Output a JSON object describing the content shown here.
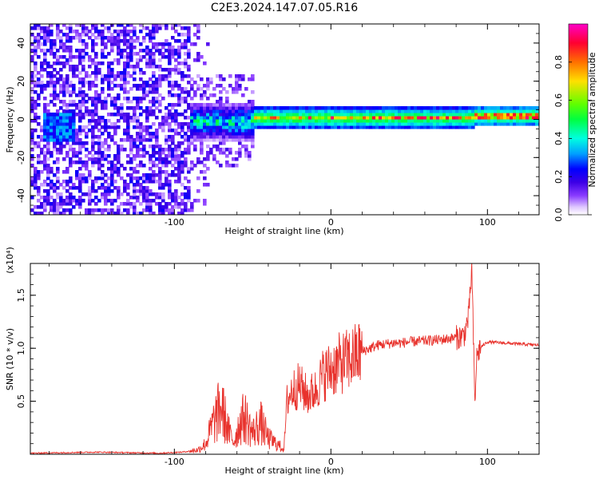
{
  "title": "C2E3.2024.147.07.05.R16",
  "chart_data": [
    {
      "type": "heatmap",
      "xlabel": "Height of straight line (km)",
      "ylabel": "Frequency (Hz)",
      "xlim": [
        -192,
        133
      ],
      "ylim": [
        -50,
        50
      ],
      "x_ticks": [
        -100,
        0,
        100
      ],
      "y_ticks": [
        -40,
        -20,
        0,
        20,
        40
      ],
      "colorbar": {
        "label": "Normalized spectral amplitude",
        "range": [
          0,
          1
        ],
        "ticks": [
          0.0,
          0.2,
          0.4,
          0.6,
          0.8
        ],
        "colormap": [
          "#ffffff",
          "#e0c8ff",
          "#8a3cff",
          "#3c00e6",
          "#0000ff",
          "#00a0ff",
          "#00ffe0",
          "#00ff40",
          "#60ff00",
          "#ffe000",
          "#ff7000",
          "#ff0030",
          "#ff00c8"
        ]
      },
      "regions": [
        {
          "x_range": [
            -192,
            -90
          ],
          "description_value": "broadband noise, amplitude 0.05-0.3 over full band"
        },
        {
          "x_range": [
            -90,
            -50
          ],
          "center_hz": -2,
          "half_width_hz": 8,
          "peak_amplitude": 0.5
        },
        {
          "x_range": [
            -50,
            133
          ],
          "center_hz": 0,
          "half_width_hz": 4,
          "peak_amplitude": 0.95
        }
      ]
    },
    {
      "type": "line",
      "xlabel": "Height of straight line (km)",
      "ylabel": "SNR (10 * v/v)",
      "y_multiplier": "(x10⁴)",
      "xlim": [
        -192,
        133
      ],
      "ylim": [
        0,
        1.8
      ],
      "x_ticks": [
        -100,
        0,
        100
      ],
      "y_ticks": [
        0.5,
        1.0,
        1.5
      ],
      "color": "#e8322c",
      "series": [
        {
          "x": [
            -192,
            -150,
            -110,
            -95,
            -85,
            -80,
            -75,
            -70,
            -65,
            -62,
            -58,
            -55,
            -50,
            -45,
            -40,
            -35,
            -30,
            -28,
            -25,
            -20,
            -15,
            -10,
            -5,
            0,
            5,
            10,
            15,
            20,
            25,
            30,
            35,
            40,
            45,
            50,
            60,
            70,
            80,
            85,
            88,
            90,
            91,
            92,
            93,
            95,
            100,
            110,
            120,
            133
          ],
          "y": [
            0.01,
            0.02,
            0.01,
            0.02,
            0.04,
            0.1,
            0.3,
            0.45,
            0.2,
            0.12,
            0.3,
            0.35,
            0.2,
            0.3,
            0.15,
            0.1,
            0.05,
            0.5,
            0.6,
            0.65,
            0.55,
            0.6,
            0.75,
            0.8,
            0.85,
            0.88,
            0.92,
            0.97,
            1.0,
            1.03,
            1.04,
            1.05,
            1.05,
            1.06,
            1.07,
            1.08,
            1.1,
            1.12,
            1.3,
            1.75,
            1.1,
            0.45,
            0.9,
            1.0,
            1.06,
            1.05,
            1.04,
            1.03
          ]
        }
      ]
    }
  ]
}
